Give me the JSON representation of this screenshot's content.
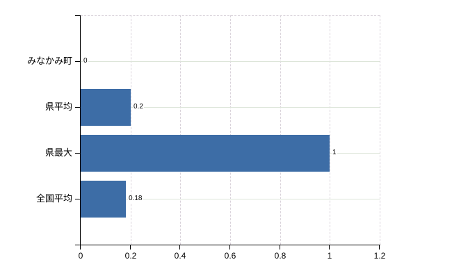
{
  "chart_data": {
    "type": "bar",
    "orientation": "horizontal",
    "title": "",
    "categories": [
      "みなかみ町",
      "県平均",
      "県最大",
      "全国平均"
    ],
    "values": [
      0,
      0.2,
      1,
      0.18
    ],
    "value_labels": [
      "0",
      "0.2",
      "1",
      "0.18"
    ],
    "x_tick_values": [
      0,
      0.2,
      0.4,
      0.6,
      0.8,
      1,
      1.2
    ],
    "x_tick_labels": [
      "0",
      "0.2",
      "0.4",
      "0.6",
      "0.8",
      "1",
      "1.2"
    ],
    "xlim": [
      0,
      1.2
    ],
    "grid": true,
    "legend": false,
    "colors": {
      "bar": "#3d6da6",
      "axis": "#000000",
      "text": "#000000",
      "grid_horizontal": "#dde5d9",
      "grid_vertical": "#d9d2da"
    }
  }
}
